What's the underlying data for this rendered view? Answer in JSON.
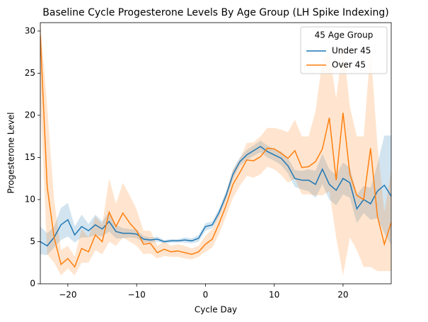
{
  "chart_data": {
    "type": "line",
    "title": "Baseline Cycle Progesterone Levels By Age Group (LH Spike Indexing)",
    "xlabel": "Cycle Day",
    "ylabel": "Progesterone Level",
    "legend_title": "45 Age Group",
    "legend": "upper right",
    "x": [
      -24,
      -23,
      -22,
      -21,
      -20,
      -19,
      -18,
      -17,
      -16,
      -15,
      -14,
      -13,
      -12,
      -11,
      -10,
      -9,
      -8,
      -7,
      -6,
      -5,
      -4,
      -3,
      -2,
      -1,
      0,
      1,
      2,
      3,
      4,
      5,
      6,
      7,
      8,
      9,
      10,
      11,
      12,
      13,
      14,
      15,
      16,
      17,
      18,
      19,
      20,
      21,
      22,
      23,
      24,
      25,
      26,
      27
    ],
    "series": [
      {
        "name": "Under 45",
        "color": "#1f77b4",
        "values": [
          5.0,
          4.5,
          5.5,
          7.0,
          7.6,
          5.8,
          6.8,
          6.3,
          7.0,
          6.5,
          7.4,
          6.2,
          6.0,
          6.0,
          5.9,
          5.3,
          5.2,
          5.3,
          5.0,
          5.1,
          5.1,
          5.2,
          5.1,
          5.4,
          6.8,
          7.0,
          8.5,
          10.5,
          13.0,
          14.5,
          15.3,
          15.8,
          16.3,
          15.7,
          15.3,
          14.9,
          14.0,
          12.5,
          12.3,
          12.3,
          11.8,
          13.6,
          11.8,
          11.1,
          12.5,
          12.0,
          8.9,
          10.0,
          9.5,
          11.0,
          11.7,
          10.4
        ],
        "lower": [
          3.5,
          3.4,
          4.3,
          5.2,
          5.6,
          4.9,
          5.5,
          5.5,
          5.8,
          5.6,
          6.2,
          5.4,
          5.4,
          5.5,
          5.4,
          4.9,
          4.9,
          5.0,
          4.8,
          4.9,
          4.9,
          4.9,
          4.8,
          5.0,
          6.3,
          6.6,
          8.0,
          10.0,
          12.4,
          14.0,
          14.7,
          15.2,
          15.6,
          15.0,
          14.6,
          14.1,
          13.1,
          11.5,
          11.2,
          11.0,
          10.2,
          11.8,
          10.0,
          9.3,
          10.6,
          10.2,
          7.2,
          8.4,
          7.6,
          7.8,
          6.0,
          4.6
        ],
        "upper": [
          6.8,
          6.0,
          6.8,
          9.0,
          9.6,
          6.8,
          8.2,
          7.1,
          8.2,
          7.4,
          8.6,
          7.0,
          6.6,
          6.5,
          6.4,
          5.7,
          5.5,
          5.6,
          5.2,
          5.3,
          5.3,
          5.5,
          5.4,
          5.8,
          7.2,
          7.4,
          9.0,
          11.0,
          13.6,
          15.0,
          15.9,
          16.4,
          17.0,
          16.4,
          16.0,
          15.7,
          14.9,
          13.5,
          13.4,
          13.6,
          13.4,
          15.4,
          13.6,
          12.9,
          14.4,
          13.8,
          10.6,
          11.6,
          11.4,
          14.2,
          17.6,
          17.6
        ]
      },
      {
        "name": "Over 45",
        "color": "#ff7f0e",
        "values": [
          29.5,
          11.5,
          5.5,
          2.3,
          3.0,
          2.0,
          4.2,
          3.8,
          5.8,
          5.0,
          8.5,
          6.8,
          8.4,
          7.2,
          6.3,
          4.7,
          4.8,
          3.7,
          4.1,
          3.8,
          3.9,
          3.7,
          3.5,
          3.8,
          4.7,
          5.3,
          7.2,
          9.3,
          11.8,
          13.2,
          14.7,
          14.6,
          15.1,
          16.1,
          16.0,
          15.5,
          14.9,
          15.8,
          13.8,
          13.9,
          14.5,
          16.0,
          19.7,
          12.3,
          20.3,
          13.0,
          10.5,
          10.0,
          16.1,
          8.0,
          4.7,
          7.3
        ],
        "lower": [
          22,
          3.5,
          2.5,
          1.0,
          1.8,
          1.0,
          2.5,
          2.5,
          4.0,
          3.5,
          5.0,
          4.5,
          5.5,
          5.0,
          4.5,
          3.5,
          3.6,
          3.0,
          3.3,
          3.2,
          3.2,
          3.0,
          2.9,
          3.2,
          3.8,
          4.3,
          6.0,
          8.0,
          10.2,
          11.6,
          12.8,
          12.6,
          13.0,
          13.9,
          13.6,
          12.9,
          12.0,
          12.5,
          10.6,
          10.6,
          10.5,
          10.5,
          11.0,
          5.5,
          1.0,
          5.5,
          4.0,
          2.0,
          2.0,
          1.5,
          1.5,
          1.5
        ],
        "upper": [
          31,
          21,
          10,
          4.0,
          4.5,
          3.2,
          6.5,
          5.5,
          8.0,
          7.0,
          12.5,
          9.5,
          12.0,
          10.5,
          8.8,
          6.3,
          6.3,
          4.5,
          5.0,
          4.5,
          4.7,
          4.5,
          4.2,
          4.5,
          5.7,
          6.5,
          8.5,
          10.8,
          13.5,
          14.8,
          16.7,
          16.8,
          17.5,
          18.5,
          18.5,
          18.3,
          18.0,
          19.5,
          17.5,
          17.5,
          20.5,
          26.5,
          27.5,
          22.0,
          28.5,
          21.0,
          17.5,
          17.5,
          28,
          16.5,
          8.5,
          13.5
        ]
      }
    ],
    "xlim": [
      -24,
      27
    ],
    "ylim": [
      0,
      31
    ],
    "xticks": [
      {
        "value": -20,
        "label": "−20"
      },
      {
        "value": -10,
        "label": "−10"
      },
      0,
      10,
      20
    ],
    "yticks": [
      0,
      5,
      10,
      15,
      20,
      25,
      30
    ]
  }
}
